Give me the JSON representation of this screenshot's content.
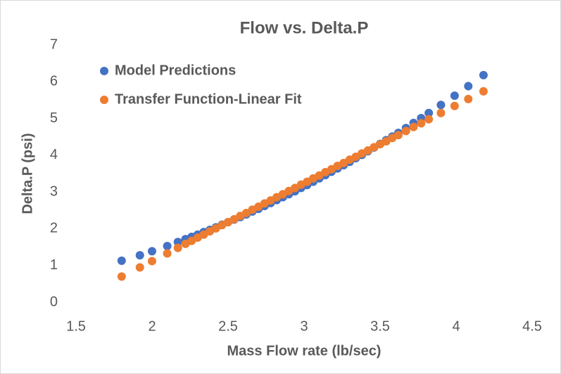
{
  "chart_data": {
    "type": "scatter",
    "title": "Flow vs. Delta.P",
    "x_label": "Mass Flow rate (lb/sec)",
    "y_label": "Delta.P (psi)",
    "x": [
      1.8,
      1.92,
      2.0,
      2.1,
      2.17,
      2.22,
      2.26,
      2.3,
      2.34,
      2.38,
      2.42,
      2.46,
      2.5,
      2.54,
      2.58,
      2.62,
      2.66,
      2.7,
      2.74,
      2.78,
      2.82,
      2.86,
      2.9,
      2.94,
      2.98,
      3.02,
      3.06,
      3.1,
      3.14,
      3.18,
      3.22,
      3.26,
      3.3,
      3.34,
      3.38,
      3.42,
      3.46,
      3.5,
      3.54,
      3.58,
      3.62,
      3.67,
      3.72,
      3.77,
      3.82,
      3.9,
      3.99,
      4.08,
      4.18
    ],
    "series": [
      {
        "name": "Model Predictions",
        "color": "#4472c4",
        "values": [
          1.13,
          1.28,
          1.39,
          1.53,
          1.64,
          1.72,
          1.78,
          1.84,
          1.91,
          1.97,
          2.04,
          2.11,
          2.18,
          2.25,
          2.32,
          2.39,
          2.47,
          2.54,
          2.62,
          2.7,
          2.78,
          2.86,
          2.94,
          3.02,
          3.11,
          3.19,
          3.28,
          3.37,
          3.46,
          3.55,
          3.64,
          3.73,
          3.82,
          3.92,
          4.01,
          4.11,
          4.21,
          4.31,
          4.41,
          4.51,
          4.61,
          4.74,
          4.88,
          5.01,
          5.15,
          5.37,
          5.62,
          5.88,
          6.18
        ]
      },
      {
        "name": "Transfer Function-Linear Fit",
        "color": "#ed7d31",
        "values": [
          0.7,
          0.95,
          1.12,
          1.33,
          1.48,
          1.59,
          1.67,
          1.76,
          1.84,
          1.93,
          2.01,
          2.1,
          2.18,
          2.26,
          2.35,
          2.43,
          2.52,
          2.6,
          2.69,
          2.77,
          2.86,
          2.94,
          3.03,
          3.11,
          3.2,
          3.28,
          3.37,
          3.45,
          3.54,
          3.62,
          3.71,
          3.79,
          3.88,
          3.96,
          4.05,
          4.13,
          4.22,
          4.3,
          4.38,
          4.47,
          4.55,
          4.66,
          4.77,
          4.87,
          4.98,
          5.15,
          5.34,
          5.53,
          5.74
        ]
      }
    ],
    "xlim": [
      1.5,
      4.5
    ],
    "xticks": [
      1.5,
      2,
      2.5,
      3,
      3.5,
      4,
      4.5
    ],
    "ylim": [
      0,
      7
    ],
    "yticks": [
      0,
      1,
      2,
      3,
      4,
      5,
      6,
      7
    ],
    "grid": false,
    "legend": "upper left"
  }
}
